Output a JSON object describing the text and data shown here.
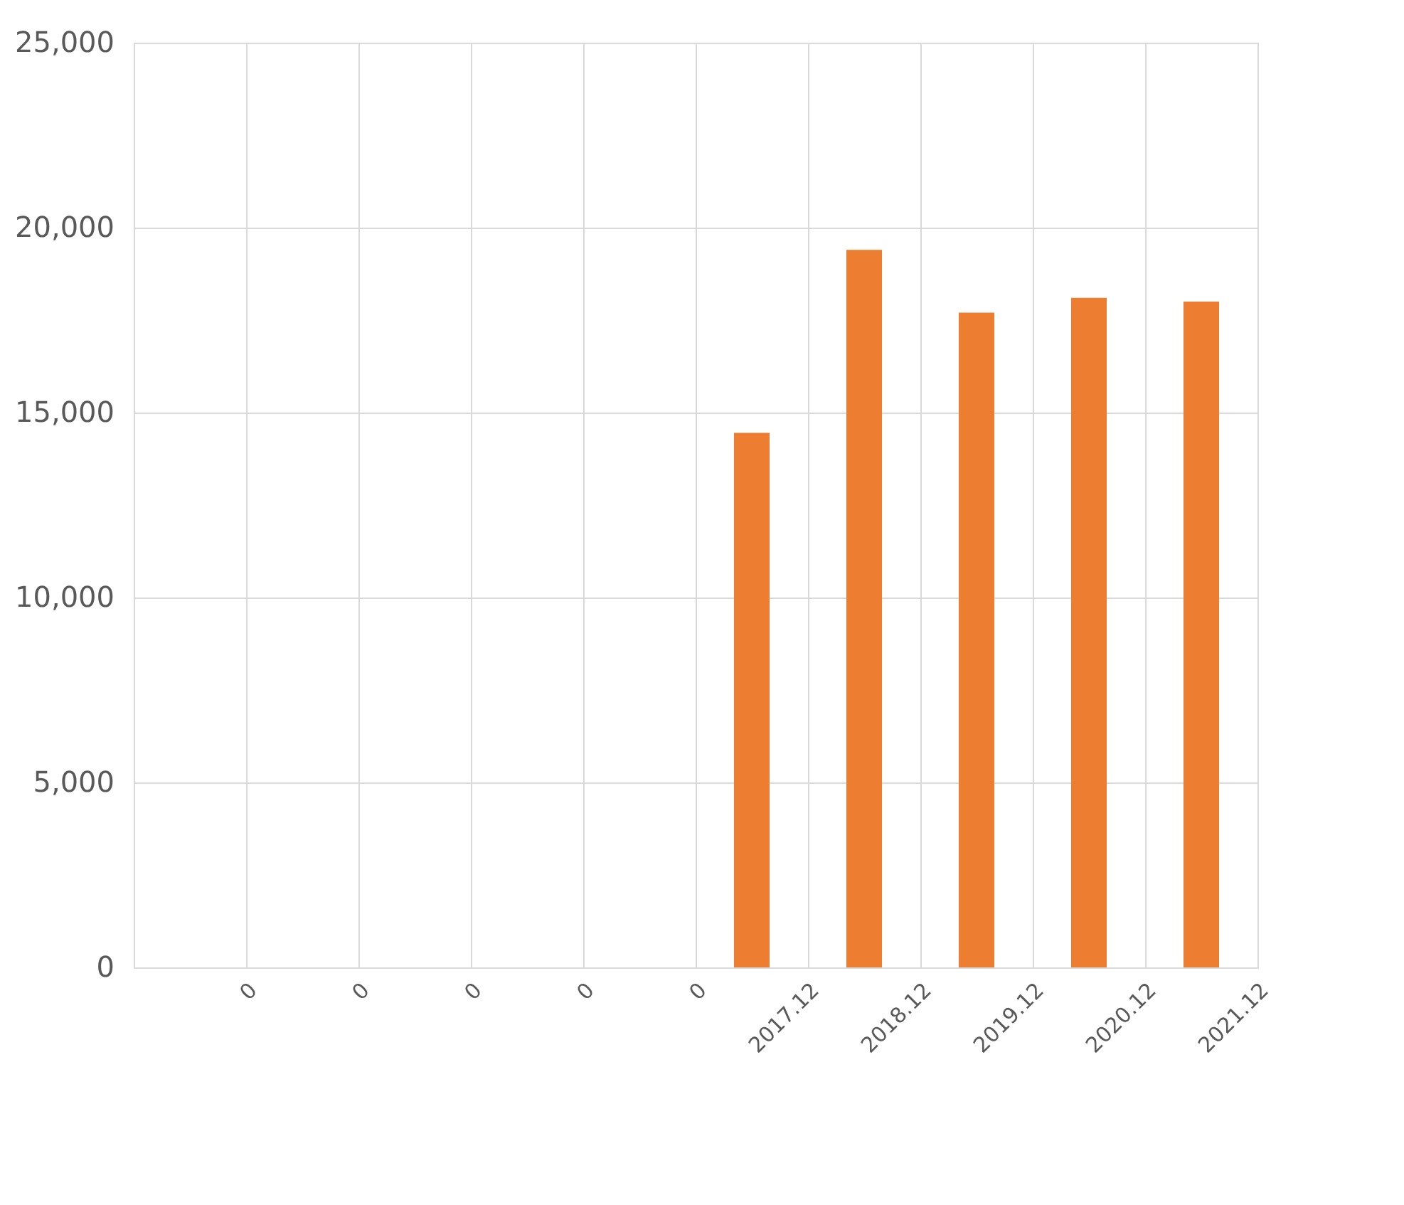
{
  "chart_data": {
    "type": "bar",
    "categories": [
      "0",
      "0",
      "0",
      "0",
      "0",
      "2017.12",
      "2018.12",
      "2019.12",
      "2020.12",
      "2021.12"
    ],
    "values": [
      null,
      null,
      null,
      null,
      null,
      14450,
      19400,
      17700,
      18100,
      18000
    ],
    "color": "#ed7d31",
    "ylim": [
      0,
      25000
    ],
    "yticks": [
      {
        "value": 0,
        "label": "0"
      },
      {
        "value": 5000,
        "label": "5,000"
      },
      {
        "value": 10000,
        "label": "10,000"
      },
      {
        "value": 15000,
        "label": "15,000"
      },
      {
        "value": 20000,
        "label": "20,000"
      },
      {
        "value": 25000,
        "label": "25,000"
      }
    ],
    "grid": true
  }
}
